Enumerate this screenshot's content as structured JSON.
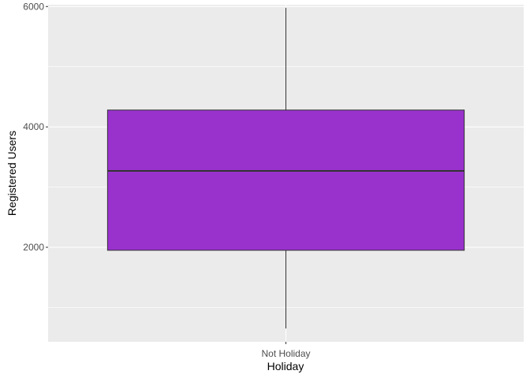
{
  "chart_data": {
    "type": "boxplot",
    "title": "",
    "xlabel": "Holiday",
    "ylabel": "Registered Users",
    "categories": [
      "Not Holiday"
    ],
    "boxes": [
      {
        "category": "Not Holiday",
        "min": 650,
        "q1": 1950,
        "median": 3270,
        "q3": 4280,
        "max": 5980
      }
    ],
    "ylim": [
      430,
      6030
    ],
    "yticks": [
      2000,
      4000,
      6000
    ],
    "ytick_labels": [
      "2000",
      "4000",
      "6000"
    ],
    "grid": true,
    "legend": "none",
    "colors": {
      "panel_background": "#ebebeb",
      "grid_major": "#ffffff",
      "box_fill": "#9932cc",
      "box_stroke": "#333333",
      "whisker": "#333333",
      "tick_label": "#4d4d4d"
    }
  }
}
